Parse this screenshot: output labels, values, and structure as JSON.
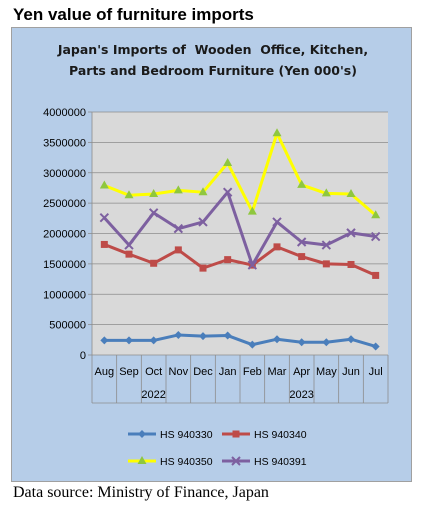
{
  "heading": "Yen value of furniture imports",
  "source": "Data source: Ministry of Finance, Japan",
  "colors": {
    "panel_bg": "#b6cde8",
    "plot_bg": "#d9d9d9",
    "HS 940330": "#4a7ebb",
    "HS 940340": "#be4b48",
    "HS 940350": "#ffff00",
    "HS 940391": "#7d60a0"
  },
  "chart_data": {
    "type": "line",
    "title_line1": "Japan's Imports of  Wooden  Office, Kitchen,",
    "title_line2": "Parts and Bedroom Furniture (Yen 000's)",
    "categories": [
      "Aug",
      "Sep",
      "Oct",
      "Nov",
      "Dec",
      "Jan",
      "Feb",
      "Mar",
      "Apr",
      "May",
      "Jun",
      "Jul"
    ],
    "year_groups": [
      {
        "label": "2022",
        "start": 0,
        "end": 4
      },
      {
        "label": "2023",
        "start": 5,
        "end": 11
      }
    ],
    "ylim": [
      0,
      4000000
    ],
    "yticks": [
      "4000000",
      "3500000",
      "3000000",
      "2500000",
      "2000000",
      "1500000",
      "1000000",
      "500000",
      "0"
    ],
    "ytick_values": [
      4000000,
      3500000,
      3000000,
      2500000,
      2000000,
      1500000,
      1000000,
      500000,
      0
    ],
    "grid": "horizontal",
    "legend_position": "bottom",
    "series": [
      {
        "name": "HS 940330",
        "marker": "diamond",
        "values": [
          240000,
          240000,
          240000,
          330000,
          310000,
          320000,
          170000,
          260000,
          210000,
          210000,
          260000,
          140000
        ]
      },
      {
        "name": "HS 940340",
        "marker": "square",
        "values": [
          1820000,
          1660000,
          1510000,
          1730000,
          1430000,
          1570000,
          1480000,
          1780000,
          1620000,
          1500000,
          1490000,
          1310000
        ]
      },
      {
        "name": "HS 940350",
        "marker": "triangle",
        "values": [
          2790000,
          2630000,
          2650000,
          2710000,
          2680000,
          3160000,
          2360000,
          3650000,
          2800000,
          2660000,
          2650000,
          2300000
        ]
      },
      {
        "name": "HS 940391",
        "marker": "cross",
        "values": [
          2260000,
          1810000,
          2340000,
          2080000,
          2190000,
          2680000,
          1480000,
          2190000,
          1860000,
          1810000,
          2010000,
          1950000
        ]
      }
    ]
  }
}
